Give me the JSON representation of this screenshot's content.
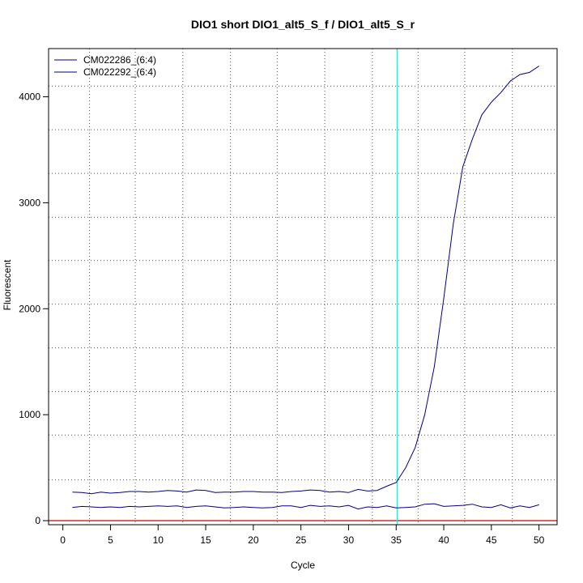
{
  "chart_data": {
    "type": "line",
    "title": "DIO1 short DIO1_alt5_S_f / DIO1_alt5_S_r",
    "xlabel": "Cycle",
    "ylabel": "Fluorescent",
    "xlim": [
      -1.5,
      51.9
    ],
    "ylim": [
      -38,
      4455
    ],
    "x_ticks": [
      0,
      5,
      10,
      15,
      20,
      25,
      30,
      35,
      40,
      45,
      50
    ],
    "y_ticks": [
      0,
      1000,
      2000,
      3000,
      4000
    ],
    "grid": "dotted",
    "grid_x": [
      2.8,
      7.6,
      12.6,
      17.6,
      22.5,
      27.5,
      32.5,
      37.3,
      42.2,
      47.2
    ],
    "grid_y": [
      385,
      808,
      1218,
      1631,
      2043,
      2455,
      2864,
      3277,
      3689,
      4102
    ],
    "legend_position": "top-left",
    "threshold_cycle": 35.1,
    "baseline": 0,
    "colors": {
      "series": "#00007f",
      "threshold": "#40e0d0",
      "baseline": "#d00000",
      "grid": "#555555"
    },
    "series": [
      {
        "name": "CM022286_(6:4)",
        "x": [
          1,
          2,
          3,
          4,
          5,
          6,
          7,
          8,
          9,
          10,
          11,
          12,
          13,
          14,
          15,
          16,
          17,
          18,
          19,
          20,
          21,
          22,
          23,
          24,
          25,
          26,
          27,
          28,
          29,
          30,
          31,
          32,
          33,
          34,
          35,
          36,
          37,
          38,
          39,
          40,
          41,
          42,
          43,
          44,
          45,
          46,
          47,
          48,
          49,
          50
        ],
        "values": [
          270,
          265,
          255,
          270,
          260,
          265,
          275,
          275,
          270,
          275,
          285,
          280,
          270,
          290,
          285,
          265,
          270,
          270,
          275,
          275,
          270,
          270,
          265,
          275,
          280,
          290,
          285,
          270,
          275,
          265,
          295,
          280,
          285,
          325,
          360,
          500,
          690,
          1000,
          1450,
          2100,
          2800,
          3340,
          3600,
          3830,
          3950,
          4040,
          4150,
          4210,
          4230,
          4290
        ]
      },
      {
        "name": "CM022292_(6:4)",
        "x": [
          1,
          2,
          3,
          4,
          5,
          6,
          7,
          8,
          9,
          10,
          11,
          12,
          13,
          14,
          15,
          16,
          17,
          18,
          19,
          20,
          21,
          22,
          23,
          24,
          25,
          26,
          27,
          28,
          29,
          30,
          31,
          32,
          33,
          34,
          35,
          36,
          37,
          38,
          39,
          40,
          41,
          42,
          43,
          44,
          45,
          46,
          47,
          48,
          49,
          50
        ],
        "values": [
          125,
          135,
          130,
          125,
          130,
          125,
          135,
          130,
          135,
          140,
          135,
          140,
          125,
          135,
          140,
          130,
          120,
          125,
          130,
          125,
          120,
          125,
          140,
          140,
          125,
          145,
          135,
          140,
          130,
          145,
          110,
          130,
          125,
          140,
          120,
          125,
          130,
          155,
          160,
          135,
          140,
          145,
          155,
          130,
          125,
          150,
          120,
          140,
          125,
          150
        ]
      }
    ]
  }
}
